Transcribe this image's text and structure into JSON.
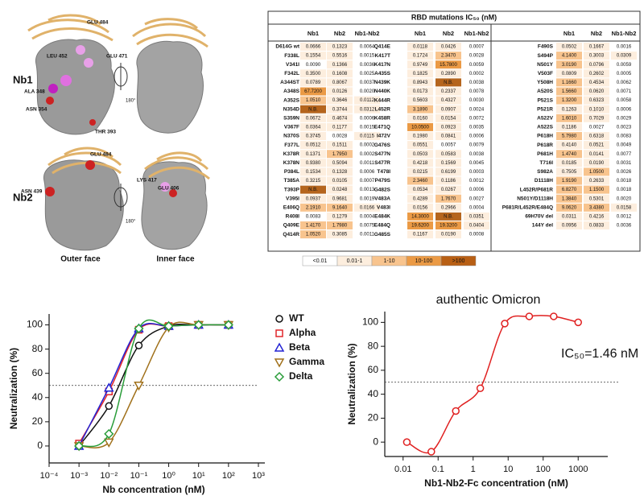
{
  "structures": {
    "rows": [
      {
        "label": "Nb1",
        "residues": [
          "GLU 484",
          "LEU 452",
          "GLU 471",
          "ALA 348",
          "ASN 354",
          "THR 393"
        ]
      },
      {
        "label": "Nb2",
        "residues": [
          "GLU 484",
          "ASN 439",
          "LYS 417",
          "GLU 406"
        ]
      }
    ],
    "rotation": "180°",
    "faces": [
      "Outer face",
      "Inner face"
    ]
  },
  "table": {
    "title": "RBD mutations IC₅₀ (nM)",
    "no_binding_color": "#b5651d",
    "groups": [
      {
        "columns": [
          "Nb1",
          "Nb2",
          "Nb1-Nb2"
        ],
        "rows": [
          [
            "D614G wt",
            "0.0666",
            "0.1323",
            "0.0064"
          ],
          [
            "F338L",
            "0.1554",
            "0.5516",
            "0.0015"
          ],
          [
            "V341I",
            "0.0090",
            "0.1366",
            "0.0036"
          ],
          [
            "F342L",
            "0.3500",
            "0.1608",
            "0.0025"
          ],
          [
            "A344ST",
            "0.0789",
            "0.8067",
            "0.0037"
          ],
          [
            "A348S",
            "67.7200",
            "0.0126",
            "0.0020"
          ],
          [
            "A352S",
            "1.0510",
            "0.3646",
            "0.0112"
          ],
          [
            "N354D",
            "N.B.",
            "0.3744",
            "0.0312"
          ],
          [
            "S359N",
            "0.0672",
            "0.4674",
            "0.0006"
          ],
          [
            "V367F",
            "0.0364",
            "0.1177",
            "0.0015"
          ],
          [
            "N370S",
            "0.3745",
            "0.0028",
            "0.0115"
          ],
          [
            "F377L",
            "0.0512",
            "0.1511",
            "0.0002"
          ],
          [
            "K378R",
            "0.1371",
            "1.7950",
            "0.0002"
          ],
          [
            "K378N",
            "0.9380",
            "0.5094",
            "0.0011"
          ],
          [
            "P384L",
            "0.1534",
            "0.1328",
            "0.0006"
          ],
          [
            "T385A",
            "0.3215",
            "0.0105",
            "0.0007"
          ],
          [
            "T393P",
            "N.B.",
            "0.0248",
            "0.0013"
          ],
          [
            "V395I",
            "0.0937",
            "0.9681",
            "0.0019"
          ],
          [
            "E406Q",
            "2.1910",
            "9.1640",
            "0.0166"
          ],
          [
            "R408I",
            "0.0083",
            "0.1279",
            "0.0004"
          ],
          [
            "Q409E",
            "1.4170",
            "1.7980",
            "0.0075"
          ],
          [
            "Q414R",
            "1.0520",
            "0.3085",
            "0.0011"
          ]
        ]
      },
      {
        "columns": [
          "Nb1",
          "Nb2",
          "Nb1-Nb2"
        ],
        "rows": [
          [
            "Q414E",
            "0.0118",
            "0.0426",
            "0.0007"
          ],
          [
            "K417T",
            "0.1724",
            "2.3470",
            "0.0028"
          ],
          [
            "K417N",
            "0.9749",
            "15.7800",
            "0.0059"
          ],
          [
            "A435S",
            "0.1825",
            "0.2890",
            "0.0002"
          ],
          [
            "N439K",
            "0.8943",
            "N.B.",
            "0.0038"
          ],
          [
            "N440K",
            "0.0173",
            "0.2337",
            "0.0078"
          ],
          [
            "K444R",
            "0.5603",
            "0.4327",
            "0.0030"
          ],
          [
            "L452R",
            "3.1890",
            "0.0907",
            "0.0024"
          ],
          [
            "K458R",
            "0.0160",
            "0.0154",
            "0.0072"
          ],
          [
            "E471Q",
            "10.0500",
            "0.0923",
            "0.0035"
          ],
          [
            "I472V",
            "0.1980",
            "0.0841",
            "0.0006"
          ],
          [
            "G476S",
            "0.0551",
            "0.0057",
            "0.0079"
          ],
          [
            "S477N",
            "0.0503",
            "0.0583",
            "0.0038"
          ],
          [
            "S477R",
            "0.4218",
            "0.1569",
            "0.0045"
          ],
          [
            "T478I",
            "0.0215",
            "0.6199",
            "0.0003"
          ],
          [
            "P479S",
            "2.3460",
            "0.1186",
            "0.0012"
          ],
          [
            "G482S",
            "0.0534",
            "0.0267",
            "0.0006"
          ],
          [
            "V483A",
            "0.4289",
            "1.7670",
            "0.0027"
          ],
          [
            "V483I",
            "0.0156",
            "0.2966",
            "0.0004"
          ],
          [
            "E484K",
            "14.3000",
            "N.B.",
            "0.0351"
          ],
          [
            "E484Q",
            "19.6200",
            "19.3200",
            "0.0404"
          ],
          [
            "G485S",
            "0.1167",
            "0.0190",
            "0.0008"
          ]
        ]
      },
      {
        "columns": [
          "Nb1",
          "Nb2",
          "Nb1-Nb2"
        ],
        "rows": [
          [
            "F490S",
            "0.0502",
            "0.1667",
            "0.0016"
          ],
          [
            "S494P",
            "4.1400",
            "0.3003",
            "0.0309"
          ],
          [
            "N501Y",
            "3.0190",
            "0.0796",
            "0.0059"
          ],
          [
            "V503F",
            "0.0809",
            "0.2602",
            "0.0005"
          ],
          [
            "Y508H",
            "1.1660",
            "0.4534",
            "0.0062"
          ],
          [
            "A520S",
            "1.5660",
            "0.0620",
            "0.0071"
          ],
          [
            "P521S",
            "1.3200",
            "0.6323",
            "0.0058"
          ],
          [
            "P521R",
            "0.1263",
            "0.1010",
            "0.0006"
          ],
          [
            "A522V",
            "1.6010",
            "0.7029",
            "0.0029"
          ],
          [
            "A522S",
            "0.1186",
            "0.0027",
            "0.0023"
          ],
          [
            "P618H",
            "5.7980",
            "0.6318",
            "0.0083"
          ],
          [
            "P618R",
            "0.4140",
            "0.0521",
            "0.0049"
          ],
          [
            "P681H",
            "1.4740",
            "0.0141",
            "0.0077"
          ],
          [
            "T716I",
            "0.0185",
            "0.0190",
            "0.0031"
          ],
          [
            "S982A",
            "0.7505",
            "1.0500",
            "0.0026"
          ],
          [
            "D1118H",
            "1.9190",
            "0.2633",
            "0.0018"
          ],
          [
            "L452R/P681R",
            "6.8270",
            "1.1500",
            "0.0018"
          ],
          [
            "N501Y/D1118H",
            "1.3840",
            "0.5301",
            "0.0020"
          ],
          [
            "P681R/L452R/E484Q",
            "9.0620",
            "3.4380",
            "0.0158"
          ],
          [
            "69H70V del",
            "0.0311",
            "0.4216",
            "0.0012"
          ],
          [
            "144Y del",
            "0.0956",
            "0.0833",
            "0.0036"
          ]
        ]
      }
    ],
    "legend": [
      {
        "label": "<0.01",
        "color": "#ffffff"
      },
      {
        "label": "0.01-1",
        "color": "#fdeede"
      },
      {
        "label": "1-10",
        "color": "#f8c48e"
      },
      {
        "label": "10-100",
        "color": "#eb9a45"
      },
      {
        "label": ">100",
        "color": "#b85f14"
      }
    ]
  },
  "chart_data": [
    {
      "type": "line",
      "xlabel": "Nb concentration (nM)",
      "ylabel": "Neutralization (%)",
      "log_x": true,
      "legend": "right",
      "x": [
        0.001,
        0.01,
        0.1,
        1,
        10,
        100
      ],
      "series": [
        {
          "name": "WT",
          "color": "#111111",
          "marker": "circle",
          "values": [
            0,
            33,
            83,
            99,
            100,
            100
          ]
        },
        {
          "name": "Alpha",
          "color": "#e0262a",
          "marker": "square",
          "values": [
            2,
            45,
            96,
            99,
            100,
            100
          ]
        },
        {
          "name": "Beta",
          "color": "#2323d4",
          "marker": "triangle",
          "values": [
            0,
            48,
            97,
            99,
            100,
            100
          ]
        },
        {
          "name": "Gamma",
          "color": "#a0701a",
          "marker": "triangle-down",
          "values": [
            0,
            3,
            50,
            98,
            100,
            100
          ]
        },
        {
          "name": "Delta",
          "color": "#2a9d3a",
          "marker": "diamond",
          "values": [
            0,
            10,
            97,
            99,
            100,
            100
          ]
        }
      ],
      "xlim": [
        0.0001,
        1000
      ],
      "xticks": [
        {
          "value": 0.0001,
          "label": "10⁻⁴"
        },
        {
          "value": 0.001,
          "label": "10⁻³"
        },
        {
          "value": 0.01,
          "label": "10⁻²"
        },
        {
          "value": 0.1,
          "label": "10⁻¹"
        },
        {
          "value": 1,
          "label": "10⁰"
        },
        {
          "value": 10,
          "label": "10¹"
        },
        {
          "value": 100,
          "label": "10²"
        },
        {
          "value": 1000,
          "label": "10³"
        }
      ],
      "ylim": [
        -14,
        109
      ],
      "yticks": [
        0,
        20,
        40,
        60,
        80,
        100
      ],
      "reference_line": 50
    },
    {
      "type": "line",
      "title": "authentic Omicron",
      "annotation": "IC₅₀=1.46 nM",
      "xlabel": "Nb1-Nb2-Fc concentration (nM)",
      "ylabel": "Neutralization (%)",
      "log_x": true,
      "x": [
        0.0128,
        0.064,
        0.32,
        1.6,
        8,
        40,
        200,
        1000
      ],
      "values": [
        0,
        -8,
        26,
        45,
        99,
        105,
        105,
        100
      ],
      "color": "#e02020",
      "marker": "circle",
      "xlim": [
        0.003,
        7000
      ],
      "xticks": [
        0.01,
        0.1,
        1,
        10,
        100,
        1000
      ],
      "ylim": [
        -12,
        109
      ],
      "yticks": [
        0,
        20,
        40,
        60,
        80,
        100
      ],
      "reference_line": 50
    }
  ]
}
